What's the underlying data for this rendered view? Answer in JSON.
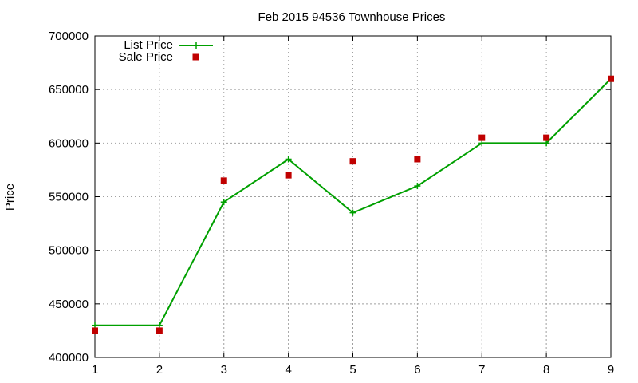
{
  "chart_data": {
    "type": "line",
    "title": "Feb 2015 94536 Townhouse Prices",
    "xlabel": "",
    "ylabel": "Price",
    "x": [
      1,
      2,
      3,
      4,
      5,
      6,
      7,
      8,
      9
    ],
    "xlim": [
      1,
      9
    ],
    "ylim": [
      400000,
      700000
    ],
    "x_ticks": [
      "1",
      "2",
      "3",
      "4",
      "5",
      "6",
      "7",
      "8",
      "9"
    ],
    "y_ticks": [
      "400000",
      "450000",
      "500000",
      "550000",
      "600000",
      "650000",
      "700000"
    ],
    "grid": true,
    "legend_position": "top-left",
    "series": [
      {
        "name": "List Price",
        "style": "line-with-plus-markers",
        "color": "#00a000",
        "values": [
          430000,
          430000,
          545000,
          585000,
          535000,
          560000,
          600000,
          600000,
          660000
        ]
      },
      {
        "name": "Sale Price",
        "style": "square-markers",
        "color": "#c00000",
        "values": [
          425000,
          425000,
          565000,
          570000,
          583000,
          585000,
          605000,
          605000,
          660000
        ]
      }
    ]
  }
}
